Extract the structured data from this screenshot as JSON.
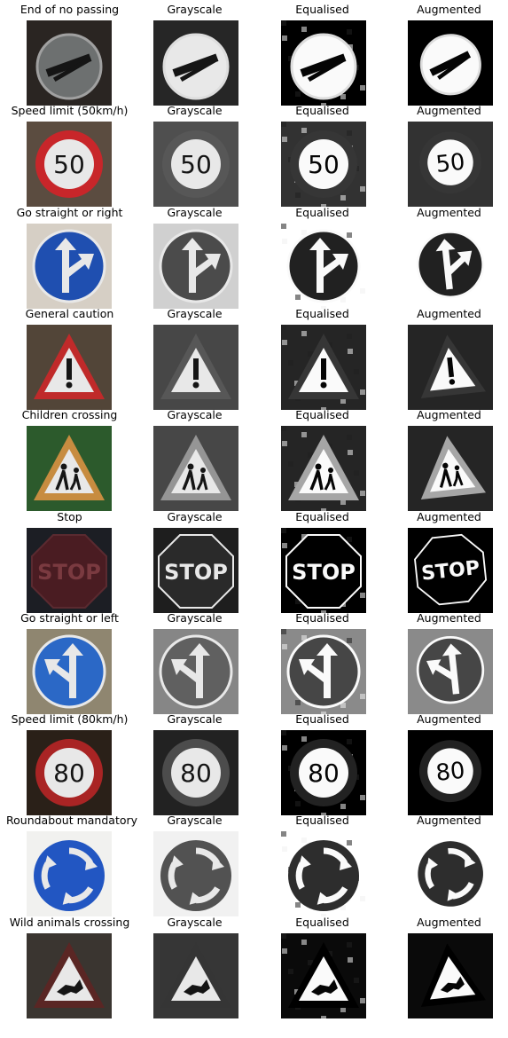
{
  "columns": [
    "Grayscale",
    "Equalised",
    "Augmented"
  ],
  "rows": [
    {
      "label": "End of no passing",
      "shape": "circle-slash",
      "sign_color": "#8a8a8a",
      "bg": "#2a2522"
    },
    {
      "label": "Speed limit (50km/h)",
      "shape": "speed",
      "sign_text": "50",
      "sign_color": "#c8262a",
      "bg": "#5b4c40"
    },
    {
      "label": "Go straight or right",
      "shape": "blue-arrow-right",
      "sign_color": "#1f4fb0",
      "bg": "#d6cfc5"
    },
    {
      "label": "General caution",
      "shape": "triangle-excl",
      "sign_color": "#c02a2a",
      "bg": "#524538"
    },
    {
      "label": "Children crossing",
      "shape": "triangle-kids",
      "sign_color": "#c78c40",
      "bg": "#2c5a2c"
    },
    {
      "label": "Stop",
      "shape": "stop",
      "sign_text": "STOP",
      "sign_color": "#4a1c22",
      "bg": "#1c1e24"
    },
    {
      "label": "Go straight or left",
      "shape": "blue-arrow-left",
      "sign_color": "#2b68c6",
      "bg": "#8f8670"
    },
    {
      "label": "Speed limit (80km/h)",
      "shape": "speed",
      "sign_text": "80",
      "sign_color": "#a92424",
      "bg": "#2a2018"
    },
    {
      "label": "Roundabout mandatory",
      "shape": "roundabout",
      "sign_color": "#2256c2",
      "bg": "#f1f1ef"
    },
    {
      "label": "Wild animals crossing",
      "shape": "triangle-deer",
      "sign_color": "#5a2624",
      "bg": "#3a3530"
    }
  ]
}
